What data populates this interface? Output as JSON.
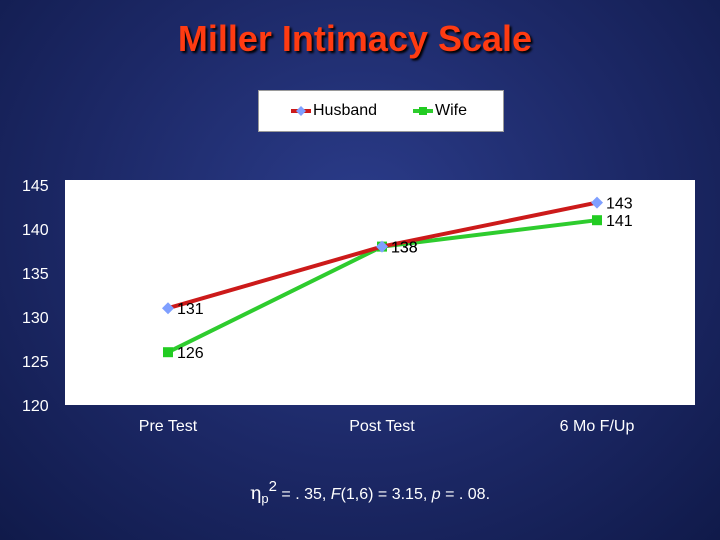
{
  "chart_data": {
    "type": "line",
    "title": "Miller Intimacy Scale",
    "categories": [
      "Pre Test",
      "Post Test",
      "6 Mo F/Up"
    ],
    "ylim": [
      120,
      145
    ],
    "yticks": [
      120,
      125,
      130,
      135,
      140,
      145
    ],
    "legend_position": "top-center",
    "grid": false,
    "series": [
      {
        "name": "Husband",
        "values": [
          131,
          138,
          143
        ],
        "color": "#cc1a1a",
        "marker": "diamond",
        "marker_color": "#7f9fff"
      },
      {
        "name": "Wife",
        "values": [
          126,
          138,
          141
        ],
        "color": "#2ecc2e",
        "marker": "square",
        "marker_color": "#22cc22"
      }
    ]
  },
  "footnote": {
    "eta": "η",
    "sub": "p",
    "sup": "2",
    "eq": " = . 35, ",
    "f": "F",
    "fargs": "(1,6) = 3.15, ",
    "p": "p",
    "pval": " = . 08."
  }
}
